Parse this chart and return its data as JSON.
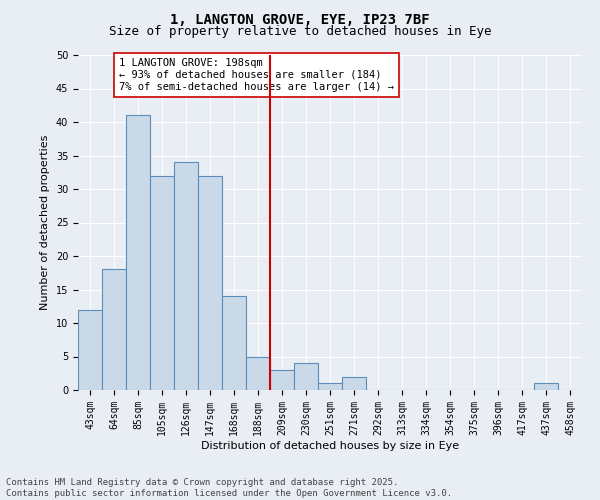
{
  "title": "1, LANGTON GROVE, EYE, IP23 7BF",
  "subtitle": "Size of property relative to detached houses in Eye",
  "xlabel": "Distribution of detached houses by size in Eye",
  "ylabel": "Number of detached properties",
  "categories": [
    "43sqm",
    "64sqm",
    "85sqm",
    "105sqm",
    "126sqm",
    "147sqm",
    "168sqm",
    "188sqm",
    "209sqm",
    "230sqm",
    "251sqm",
    "271sqm",
    "292sqm",
    "313sqm",
    "334sqm",
    "354sqm",
    "375sqm",
    "396sqm",
    "417sqm",
    "437sqm",
    "458sqm"
  ],
  "values": [
    12,
    18,
    41,
    32,
    34,
    32,
    14,
    5,
    3,
    4,
    1,
    2,
    0,
    0,
    0,
    0,
    0,
    0,
    0,
    1,
    0
  ],
  "bar_color": "#c9d9e8",
  "bar_edge_color": "#5b8db8",
  "vline_index": 7.5,
  "vline_color": "#cc0000",
  "annotation_text": "1 LANGTON GROVE: 198sqm\n← 93% of detached houses are smaller (184)\n7% of semi-detached houses are larger (14) →",
  "annotation_box_color": "#ffffff",
  "annotation_box_edge": "#cc0000",
  "ylim": [
    0,
    50
  ],
  "yticks": [
    0,
    5,
    10,
    15,
    20,
    25,
    30,
    35,
    40,
    45,
    50
  ],
  "background_color": "#e8eef4",
  "grid_color": "#ffffff",
  "footnote": "Contains HM Land Registry data © Crown copyright and database right 2025.\nContains public sector information licensed under the Open Government Licence v3.0.",
  "title_fontsize": 10,
  "subtitle_fontsize": 9,
  "axis_label_fontsize": 8,
  "tick_fontsize": 7,
  "annotation_fontsize": 7.5,
  "footnote_fontsize": 6.5
}
